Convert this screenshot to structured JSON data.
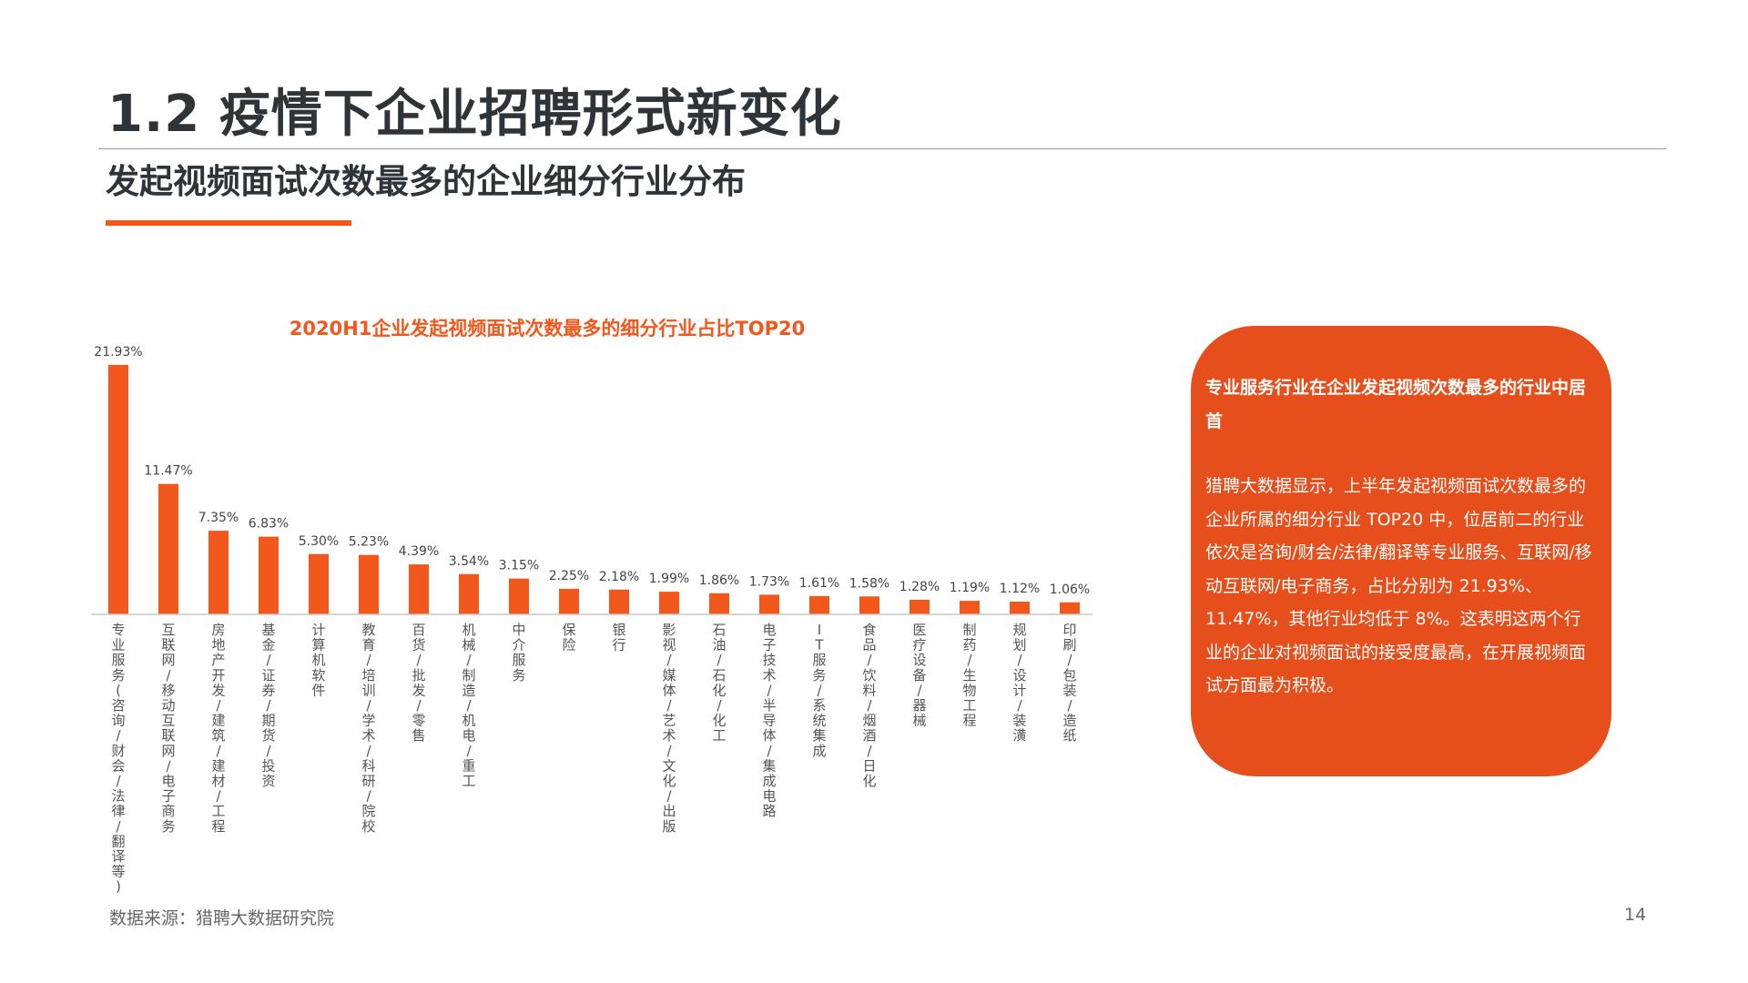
{
  "header": {
    "title": "1.2 疫情下企业招聘形式新变化",
    "subtitle": "发起视频面试次数最多的企业细分行业分布"
  },
  "colors": {
    "accent": "#f2571b",
    "card_bg": "#e64e1c",
    "title_text": "#2f3438",
    "bar": "#f2571b"
  },
  "chart_data": {
    "type": "bar",
    "title": "2020H1企业发起视频面试次数最多的细分行业占比TOP20",
    "xlabel": "",
    "ylabel": "",
    "ylim": [
      0,
      24
    ],
    "grid": false,
    "legend": "none",
    "categories": [
      "专业服务(咨询/财会/法律/翻译等)",
      "互联网/移动互联网/电子商务",
      "房地产开发/建筑/建材/工程",
      "基金/证券/期货/投资",
      "计算机软件",
      "教育/培训/学术/科研/院校",
      "百货/批发/零售",
      "机械/制造/机电/重工",
      "中介服务",
      "保险",
      "银行",
      "影视/媒体/艺术/文化/出版",
      "石油/石化/化工",
      "电子技术/半导体/集成电路",
      "IT服务/系统集成",
      "食品/饮料/烟酒/日化",
      "医疗设备/器械",
      "制药/生物工程",
      "规划/设计/装潢",
      "印刷/包装/造纸"
    ],
    "values": [
      21.93,
      11.47,
      7.35,
      6.83,
      5.3,
      5.23,
      4.39,
      3.54,
      3.15,
      2.25,
      2.18,
      1.99,
      1.86,
      1.73,
      1.61,
      1.58,
      1.28,
      1.19,
      1.12,
      1.06
    ],
    "value_labels": [
      "21.93%",
      "11.47%",
      "7.35%",
      "6.83%",
      "5.30%",
      "5.23%",
      "4.39%",
      "3.54%",
      "3.15%",
      "2.25%",
      "2.18%",
      "1.99%",
      "1.86%",
      "1.73%",
      "1.61%",
      "1.58%",
      "1.28%",
      "1.19%",
      "1.12%",
      "1.06%"
    ]
  },
  "card": {
    "heading": "专业服务行业在企业发起视频次数最多的行业中居首",
    "body": "猎聘大数据显示，上半年发起视频面试次数最多的企业所属的细分行业 TOP20 中，位居前二的行业依次是咨询/财会/法律/翻译等专业服务、互联网/移动互联网/电子商务，占比分别为 21.93%、11.47%，其他行业均低于 8%。这表明这两个行业的企业对视频面试的接受度最高，在开展视频面试方面最为积极。"
  },
  "footer": {
    "source": "数据来源：猎聘大数据研究院",
    "page_number": "14"
  }
}
